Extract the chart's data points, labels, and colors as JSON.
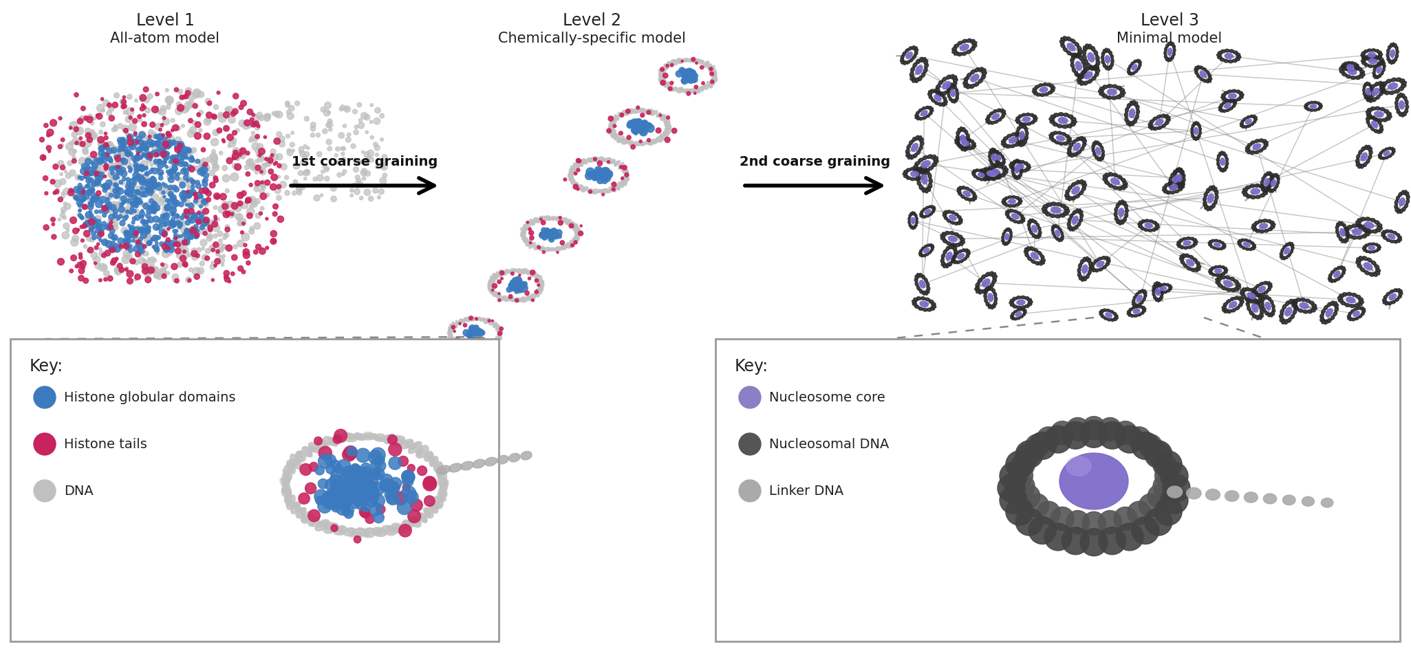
{
  "title_level1": "Level 1",
  "title_level2": "Level 2",
  "title_level3": "Level 3",
  "subtitle_level1": "All-atom model",
  "subtitle_level2": "Chemically-specific model",
  "subtitle_level3": "Minimal model",
  "arrow1_label": "1st coarse graining",
  "arrow2_label": "2nd coarse graining",
  "key1_title": "Key:",
  "key1_items": [
    "Histone globular domains",
    "Histone tails",
    "DNA"
  ],
  "key1_colors": [
    "#3b7abf",
    "#c8235e",
    "#c0c0c0"
  ],
  "key2_title": "Key:",
  "key2_items": [
    "Nucleosome core",
    "Nucleosomal DNA",
    "Linker DNA"
  ],
  "key2_colors": [
    "#8b7fc7",
    "#555555",
    "#aaaaaa"
  ],
  "blue_color": "#3b7abf",
  "red_color": "#c8235e",
  "gray_dna": "#c0c0c0",
  "dark_gray": "#444444",
  "purple": "#7b68c8",
  "light_gray": "#aaaaaa",
  "bg_color": "#ffffff",
  "box_edge": "#999999",
  "title_fontsize": 17,
  "subtitle_fontsize": 15,
  "arrow_fontsize": 14,
  "key_fontsize": 14
}
